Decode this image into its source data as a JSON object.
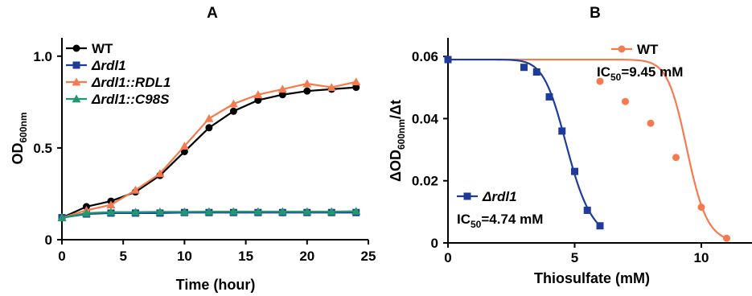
{
  "chart_data": [
    {
      "type": "line",
      "panel_label": "A",
      "xlabel": "Time (hour)",
      "ylabel_main": "OD",
      "ylabel_sub": "600nm",
      "xlim": [
        0,
        25
      ],
      "ylim": [
        0,
        1.1
      ],
      "x_ticks": [
        0,
        5,
        10,
        15,
        20,
        25
      ],
      "y_ticks": [
        0,
        0.5,
        1.0
      ],
      "y_tick_labels": [
        "0",
        "0.5",
        "1.0"
      ],
      "legend_position": "top-left",
      "x": [
        0,
        2,
        4,
        6,
        8,
        10,
        12,
        14,
        16,
        18,
        20,
        22,
        24
      ],
      "series": [
        {
          "name": "WT",
          "italic": false,
          "color": "#000000",
          "marker": "circle",
          "values": [
            0.12,
            0.18,
            0.21,
            0.26,
            0.35,
            0.48,
            0.61,
            0.7,
            0.76,
            0.79,
            0.81,
            0.82,
            0.83
          ]
        },
        {
          "name": "Δrdl1",
          "italic": true,
          "color": "#1f3b9a",
          "marker": "square",
          "values": [
            0.12,
            0.14,
            0.145,
            0.145,
            0.145,
            0.148,
            0.148,
            0.148,
            0.148,
            0.148,
            0.148,
            0.148,
            0.148
          ]
        },
        {
          "name": "Δrdl1::RDL1",
          "italic": true,
          "color": "#f57a4d",
          "marker": "triangle",
          "values": [
            0.12,
            0.16,
            0.19,
            0.27,
            0.36,
            0.51,
            0.66,
            0.74,
            0.79,
            0.82,
            0.85,
            0.83,
            0.86
          ]
        },
        {
          "name": "Δrdl1::C98S",
          "italic": true,
          "color": "#1e9a6e",
          "marker": "triangle",
          "values": [
            0.12,
            0.145,
            0.15,
            0.15,
            0.152,
            0.152,
            0.153,
            0.153,
            0.153,
            0.153,
            0.153,
            0.153,
            0.155
          ]
        }
      ]
    },
    {
      "type": "line",
      "panel_label": "B",
      "xlabel": "Thiosulfate (mM)",
      "ylabel_prefix": "ΔOD",
      "ylabel_sub": "600nm",
      "ylabel_suffix": "/Δt",
      "xlim": [
        0,
        12
      ],
      "ylim": [
        0,
        0.066
      ],
      "x_ticks": [
        0,
        5,
        10
      ],
      "y_ticks": [
        0,
        0.02,
        0.04,
        0.06
      ],
      "y_tick_labels": [
        "0",
        "0.02",
        "0.04",
        "0.06"
      ],
      "series": [
        {
          "name": "WT",
          "italic": false,
          "color": "#f57a4d",
          "marker": "circle",
          "ic50_label": "IC",
          "ic50_sub": "50",
          "ic50_value": "=9.45 mM",
          "points_x": [
            0,
            6,
            7,
            8,
            9,
            10,
            11
          ],
          "points_y": [
            0.059,
            0.052,
            0.0455,
            0.0385,
            0.0275,
            0.0115,
            0.0015
          ]
        },
        {
          "name": "Δrdl1",
          "italic": true,
          "color": "#1f3b9a",
          "marker": "square",
          "ic50_label": "IC",
          "ic50_sub": "50",
          "ic50_value": "=4.74 mM",
          "points_x": [
            0,
            3,
            3.5,
            4,
            4.5,
            5,
            5.5,
            6
          ],
          "points_y": [
            0.059,
            0.0565,
            0.055,
            0.047,
            0.036,
            0.023,
            0.0105,
            0.0055
          ]
        }
      ]
    }
  ]
}
